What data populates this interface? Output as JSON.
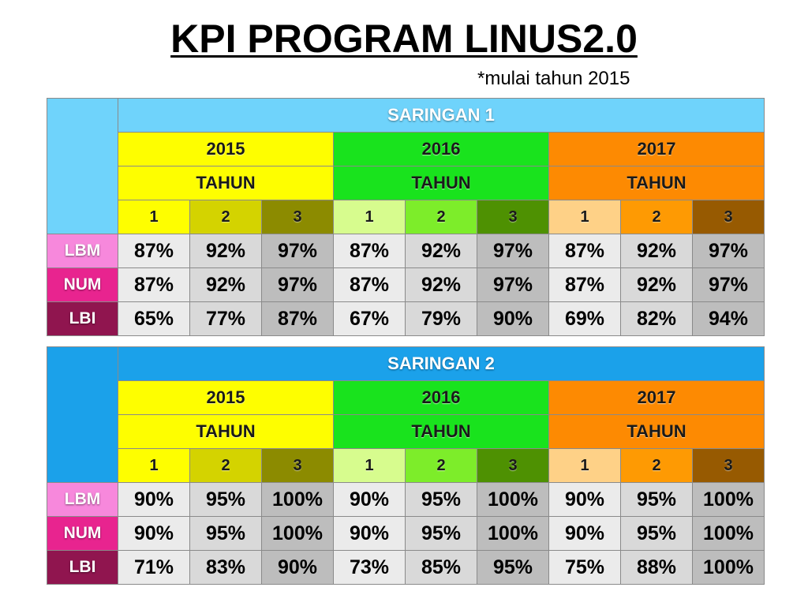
{
  "title": "KPI PROGRAM LINUS2.0",
  "subtitle": "*mulai tahun 2015",
  "tables": [
    {
      "heading": "SARINGAN 1",
      "years": [
        "2015",
        "2016",
        "2017"
      ],
      "tahun_label": "TAHUN",
      "sub_columns": [
        "1",
        "2",
        "3"
      ],
      "rows": [
        {
          "label": "LBM",
          "values": [
            "87%",
            "92%",
            "97%",
            "87%",
            "92%",
            "97%",
            "87%",
            "92%",
            "97%"
          ]
        },
        {
          "label": "NUM",
          "values": [
            "87%",
            "92%",
            "97%",
            "87%",
            "92%",
            "97%",
            "87%",
            "92%",
            "97%"
          ]
        },
        {
          "label": "LBI",
          "values": [
            "65%",
            "77%",
            "87%",
            "67%",
            "79%",
            "90%",
            "69%",
            "82%",
            "94%"
          ]
        }
      ]
    },
    {
      "heading": "SARINGAN 2",
      "years": [
        "2015",
        "2016",
        "2017"
      ],
      "tahun_label": "TAHUN",
      "sub_columns": [
        "1",
        "2",
        "3"
      ],
      "rows": [
        {
          "label": "LBM",
          "values": [
            "90%",
            "95%",
            "100%",
            "90%",
            "95%",
            "100%",
            "90%",
            "95%",
            "100%"
          ]
        },
        {
          "label": "NUM",
          "values": [
            "90%",
            "95%",
            "100%",
            "90%",
            "95%",
            "100%",
            "90%",
            "95%",
            "100%"
          ]
        },
        {
          "label": "LBI",
          "values": [
            "71%",
            "83%",
            "90%",
            "73%",
            "85%",
            "95%",
            "75%",
            "88%",
            "100%"
          ]
        }
      ]
    }
  ],
  "colors": {
    "saringan1_header": "#6fd3fb",
    "saringan2_header": "#1ba1ea",
    "year_2015": "#fefe00",
    "year_2016": "#19e31d",
    "year_2017": "#fd8a02",
    "label_lbm": "#f788dc",
    "label_num": "#e8248f",
    "label_lbi": "#90154f"
  }
}
